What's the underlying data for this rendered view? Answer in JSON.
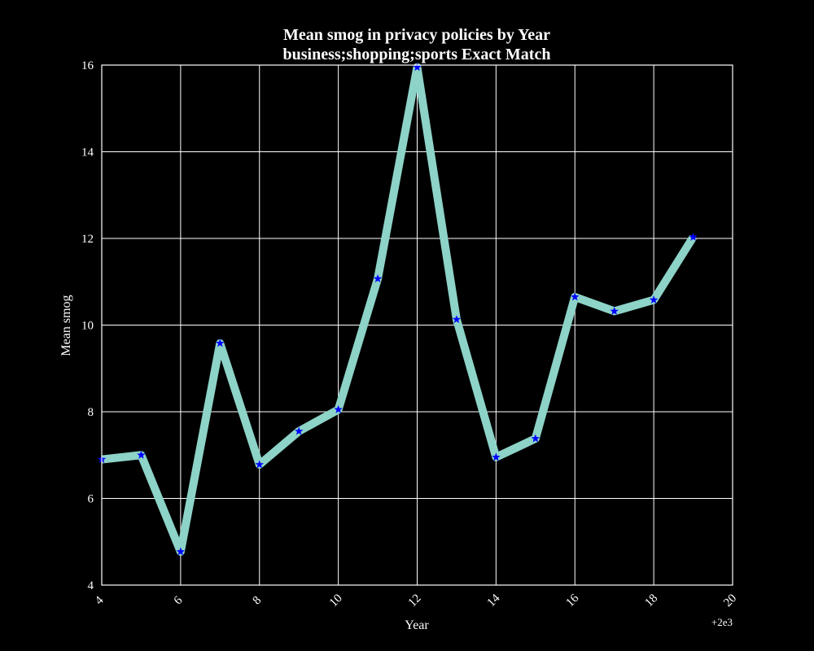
{
  "chart_data": {
    "type": "line",
    "title": "Mean smog in privacy policies by Year",
    "subtitle": "business;shopping;sports Exact Match",
    "xlabel": "Year",
    "ylabel": "Mean smog",
    "x_offset_label": "+2e3",
    "xlim": [
      4,
      20
    ],
    "ylim": [
      4,
      16
    ],
    "xticks": [
      "4",
      "6",
      "8",
      "10",
      "12",
      "14",
      "16",
      "18",
      "20"
    ],
    "yticks": [
      "4",
      "6",
      "8",
      "10",
      "12",
      "14",
      "16"
    ],
    "grid": true,
    "series": [
      {
        "x": [
          4,
          5,
          6,
          7,
          8,
          9,
          10,
          11,
          12,
          13,
          14,
          15,
          16,
          17,
          18,
          19
        ],
        "values": [
          6.9,
          7.0,
          4.77,
          9.58,
          6.78,
          7.55,
          8.05,
          11.07,
          15.95,
          10.13,
          6.95,
          7.38,
          10.65,
          10.32,
          10.58,
          12.03
        ]
      }
    ],
    "colors": {
      "background": "#000000",
      "line": "#8dd3c7",
      "marker": "#0000ff",
      "grid": "#ffffff",
      "text": "#ffffff"
    },
    "marker": "star"
  }
}
